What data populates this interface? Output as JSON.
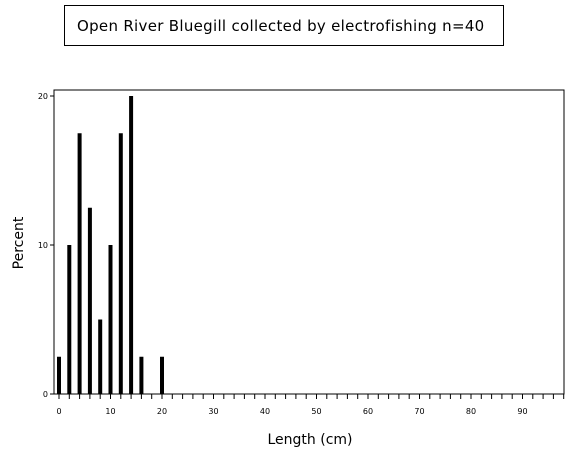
{
  "chart_data": {
    "type": "bar",
    "title": "Open River Bluegill collected by electrofishing n=40",
    "xlabel": "Length (cm)",
    "ylabel": "Percent",
    "x": [
      0,
      2,
      4,
      6,
      8,
      10,
      12,
      14,
      16,
      20
    ],
    "values": [
      2.5,
      10,
      17.5,
      12.5,
      5,
      10,
      17.5,
      20,
      2.5,
      2.5
    ],
    "xlim": [
      0,
      99
    ],
    "ylim": [
      0,
      20
    ],
    "x_ticks": [
      0,
      10,
      20,
      30,
      40,
      50,
      60,
      70,
      80,
      90
    ],
    "x_minor_tick_step": 2,
    "y_ticks": [
      0,
      10,
      20
    ],
    "grid": false,
    "bar_color": "#000000"
  }
}
